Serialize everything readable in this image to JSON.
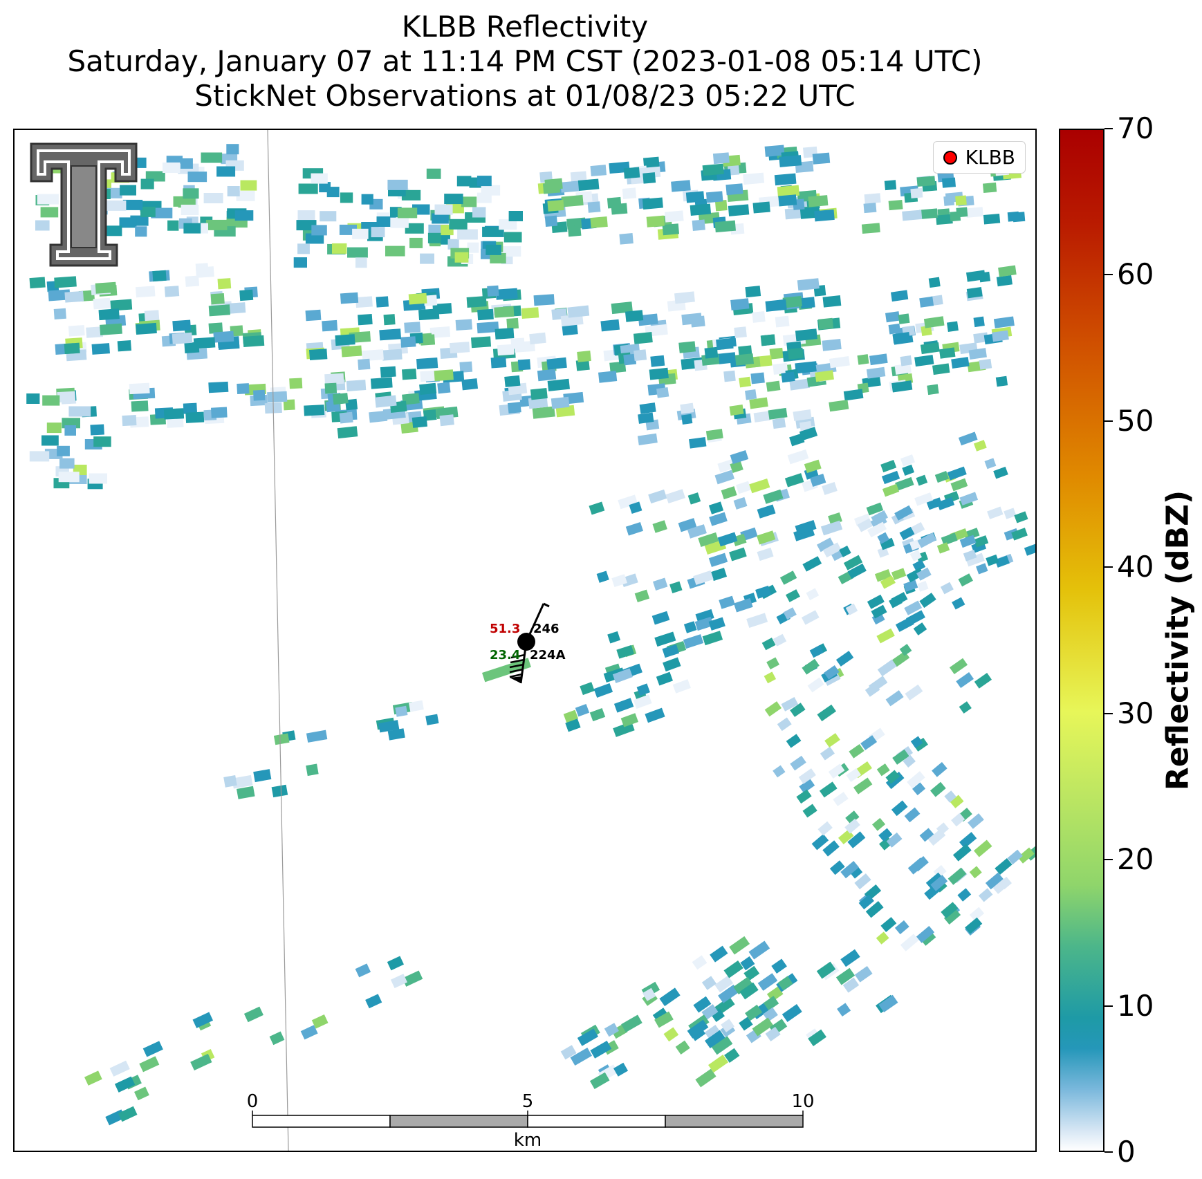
{
  "title": {
    "line1": "KLBB Reflectivity",
    "line2": "Saturday, January 07 at 11:14 PM CST (2023-01-08 05:14 UTC)",
    "line3": "StickNet Observations at 01/08/23 05:22 UTC"
  },
  "legend": {
    "label": "KLBB",
    "marker_color": "#ff0000"
  },
  "station": {
    "temperature": "51.3",
    "temperature_color": "#c00000",
    "dewpoint": "23.4",
    "dewpoint_color": "#006400",
    "pressure": "246",
    "id": "224A"
  },
  "scalebar": {
    "labels": [
      "0",
      "5",
      "10"
    ],
    "units": "km"
  },
  "colorbar": {
    "label": "Reflectivity (dBZ)",
    "min": 0,
    "max": 70,
    "ticks": [
      "0",
      "10",
      "20",
      "30",
      "40",
      "50",
      "60",
      "70"
    ],
    "stops": [
      {
        "dbz": 0,
        "color": "#ffffff"
      },
      {
        "dbz": 5,
        "color": "#7ab8dc"
      },
      {
        "dbz": 8,
        "color": "#1e9aa6"
      },
      {
        "dbz": 15,
        "color": "#4cb68a"
      },
      {
        "dbz": 20,
        "color": "#8fd56b"
      },
      {
        "dbz": 30,
        "color": "#e7f659"
      },
      {
        "dbz": 40,
        "color": "#e4c10a"
      },
      {
        "dbz": 50,
        "color": "#e08a00"
      },
      {
        "dbz": 60,
        "color": "#d05000"
      },
      {
        "dbz": 70,
        "color": "#aa0000"
      }
    ]
  },
  "logo": {
    "name": "Texas Tech Double T"
  }
}
